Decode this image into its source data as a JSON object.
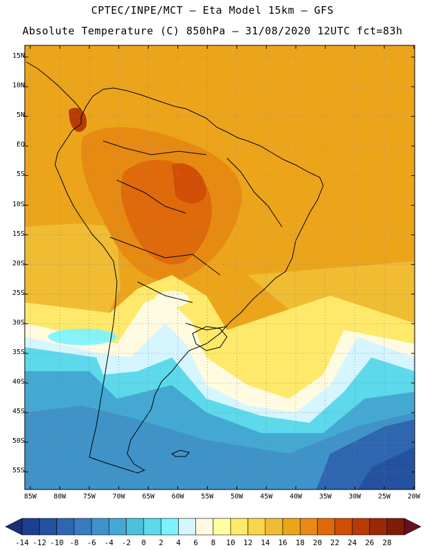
{
  "header": {
    "line1": "CPTEC/INPE/MCT –  Eta Model 15km – GFS",
    "line2": "Absolute Temperature (C) 850hPa – 31/08/2020 12UTC fct=83h"
  },
  "map": {
    "lat_labels": [
      "15N",
      "10N",
      "5N",
      "EQ",
      "5S",
      "10S",
      "15S",
      "20S",
      "25S",
      "30S",
      "35S",
      "40S",
      "45S",
      "50S",
      "55S"
    ],
    "lon_labels": [
      "85W",
      "80W",
      "75W",
      "70W",
      "65W",
      "60W",
      "55W",
      "50W",
      "45W",
      "40W",
      "35W",
      "30W",
      "25W",
      "20W"
    ],
    "region": "South America"
  },
  "colorbar": {
    "labels": [
      "-14",
      "-12",
      "-10",
      "-8",
      "-6",
      "-4",
      "-2",
      "0",
      "2",
      "4",
      "6",
      "8",
      "10",
      "12",
      "14",
      "16",
      "18",
      "20",
      "22",
      "24",
      "26",
      "28"
    ],
    "colors": [
      "#1d3f8f",
      "#24529f",
      "#2e66b0",
      "#3a7bbf",
      "#3f93c8",
      "#43a9d3",
      "#4cc1dd",
      "#5cd9ea",
      "#79f3ff",
      "#d5f5ff",
      "#fffbe0",
      "#ffffa0",
      "#ffe96a",
      "#f8d54a",
      "#f0bd32",
      "#eca51b",
      "#e78a12",
      "#df6a0b",
      "#d14e06",
      "#b83a05",
      "#9a2a06",
      "#7d1d08"
    ]
  }
}
